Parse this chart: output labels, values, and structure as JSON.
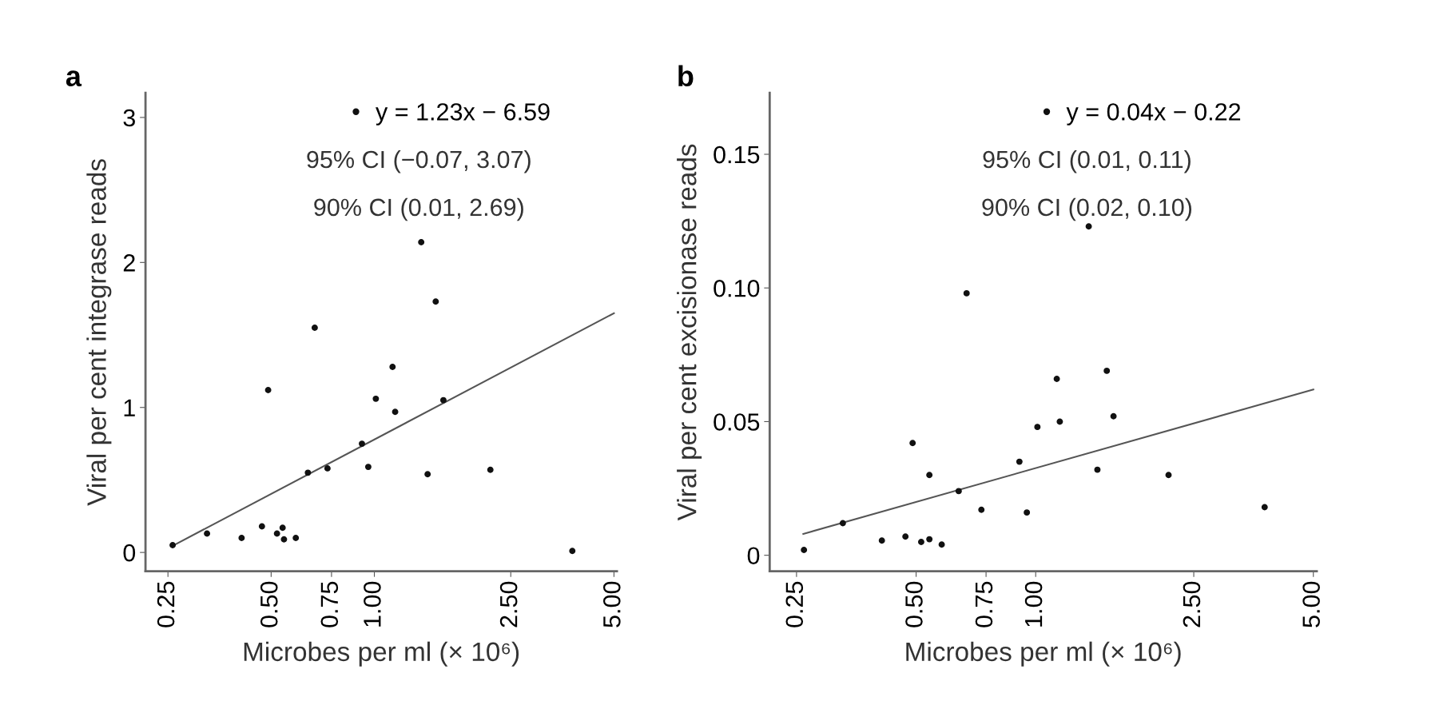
{
  "chart_data": [
    {
      "type": "scatter",
      "title": "a",
      "xlabel": "Microbes per ml (× 10⁶)",
      "ylabel": "Viral per cent integrase reads",
      "log": "x",
      "marker": "circle",
      "legend": "top right",
      "grid": false,
      "xlim": [
        0.215,
        5.1
      ],
      "ylim": [
        -0.13,
        3.17
      ],
      "xticks": [
        {
          "value": 0.25,
          "label": "0.25"
        },
        {
          "value": 0.5,
          "label": "0.50"
        },
        {
          "value": 0.75,
          "label": "0.75"
        },
        {
          "value": 1.0,
          "label": "1.00"
        },
        {
          "value": 2.5,
          "label": "2.50"
        },
        {
          "value": 5.0,
          "label": "5.00"
        }
      ],
      "yticks": [
        0,
        1,
        2,
        3
      ],
      "annotations": [
        "95% CI (−0.07, 3.07)",
        "90% CI (0.01, 2.69)"
      ],
      "series": [
        {
          "name": "y = 1.23x − 6.59",
          "color": "#111111",
          "x": [
            0.258,
            0.325,
            0.41,
            0.47,
            0.52,
            0.54,
            0.545,
            0.59,
            0.49,
            0.64,
            0.67,
            0.73,
            0.92,
            0.96,
            1.01,
            1.13,
            1.15,
            1.37,
            1.43,
            1.51,
            1.59,
            2.18,
            3.78
          ],
          "values": [
            0.05,
            0.13,
            0.1,
            0.18,
            0.13,
            0.17,
            0.09,
            0.1,
            1.12,
            0.55,
            1.55,
            0.58,
            0.75,
            0.59,
            1.06,
            1.28,
            0.97,
            2.14,
            0.54,
            1.73,
            1.05,
            0.57,
            0.01
          ]
        },
        {
          "type": "line",
          "marker": "none",
          "color": "#555555",
          "x": [
            0.26,
            5.0
          ],
          "values": [
            0.05,
            1.65
          ]
        }
      ]
    },
    {
      "type": "scatter",
      "title": "b",
      "xlabel": "Microbes per ml (× 10⁶)",
      "ylabel": "Viral per cent excisionase reads",
      "log": "x",
      "marker": "circle",
      "legend": "top right",
      "grid": false,
      "xlim": [
        0.214,
        5.1
      ],
      "ylim": [
        -0.006,
        0.173
      ],
      "xticks": [
        {
          "value": 0.25,
          "label": "0.25"
        },
        {
          "value": 0.5,
          "label": "0.50"
        },
        {
          "value": 0.75,
          "label": "0.75"
        },
        {
          "value": 1.0,
          "label": "1.00"
        },
        {
          "value": 2.5,
          "label": "2.50"
        },
        {
          "value": 5.0,
          "label": "5.00"
        }
      ],
      "yticks": [
        0,
        0.05,
        {
          "value": 0.1,
          "label": "0.10"
        },
        0.15
      ],
      "annotations": [
        "95% CI (0.01, 0.11)",
        "90% CI (0.02, 0.10)"
      ],
      "series": [
        {
          "name": "y = 0.04x − 0.22",
          "color": "#111111",
          "x": [
            0.261,
            0.327,
            0.41,
            0.47,
            0.49,
            0.515,
            0.54,
            0.54,
            0.58,
            0.64,
            0.67,
            0.73,
            0.91,
            0.95,
            1.01,
            1.13,
            1.15,
            1.36,
            1.43,
            1.51,
            1.57,
            2.16,
            3.77
          ],
          "values": [
            0.002,
            0.012,
            0.0055,
            0.007,
            0.042,
            0.005,
            0.006,
            0.03,
            0.004,
            0.024,
            0.098,
            0.017,
            0.035,
            0.016,
            0.048,
            0.066,
            0.05,
            0.123,
            0.032,
            0.069,
            0.052,
            0.03,
            0.018
          ]
        },
        {
          "type": "line",
          "marker": "none",
          "color": "#555555",
          "x": [
            0.26,
            5.0
          ],
          "values": [
            0.008,
            0.062
          ]
        }
      ]
    }
  ]
}
